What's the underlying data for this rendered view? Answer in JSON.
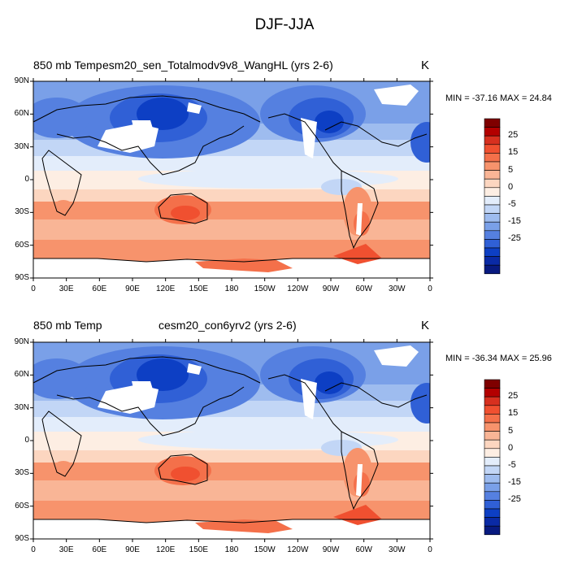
{
  "title": "DJF-JJA",
  "panels": [
    {
      "left_label": "850 mb Temp",
      "center_label": "esm20_sen_Totalmodv9v8_WangHL (yrs 2-6)",
      "unit": "K",
      "minmax": "MIN = -37.16  MAX =  24.84"
    },
    {
      "left_label": "850 mb Temp",
      "center_label": "cesm20_con6yrv2 (yrs 2-6)",
      "unit": "K",
      "minmax": "MIN = -36.34  MAX =  25.96"
    }
  ],
  "lat_ticks": [
    "90N",
    "60N",
    "30N",
    "0",
    "30S",
    "60S",
    "90S"
  ],
  "lon_ticks": [
    "0",
    "30E",
    "60E",
    "90E",
    "120E",
    "150E",
    "180",
    "150W",
    "120W",
    "90W",
    "60W",
    "30W",
    "0"
  ],
  "colorbar": {
    "labels": [
      "25",
      "15",
      "5",
      "0",
      "-5",
      "-15",
      "-25"
    ],
    "colors": [
      "#7f0000",
      "#b30000",
      "#d7301f",
      "#f05030",
      "#f4704a",
      "#f7936c",
      "#f9b596",
      "#fcd6c0",
      "#fdeee3",
      "#e3edfb",
      "#c2d6f6",
      "#9ebcef",
      "#7aa0e8",
      "#5580e0",
      "#3060d6",
      "#0d3fc4",
      "#0a2aa5",
      "#081a80"
    ]
  }
}
